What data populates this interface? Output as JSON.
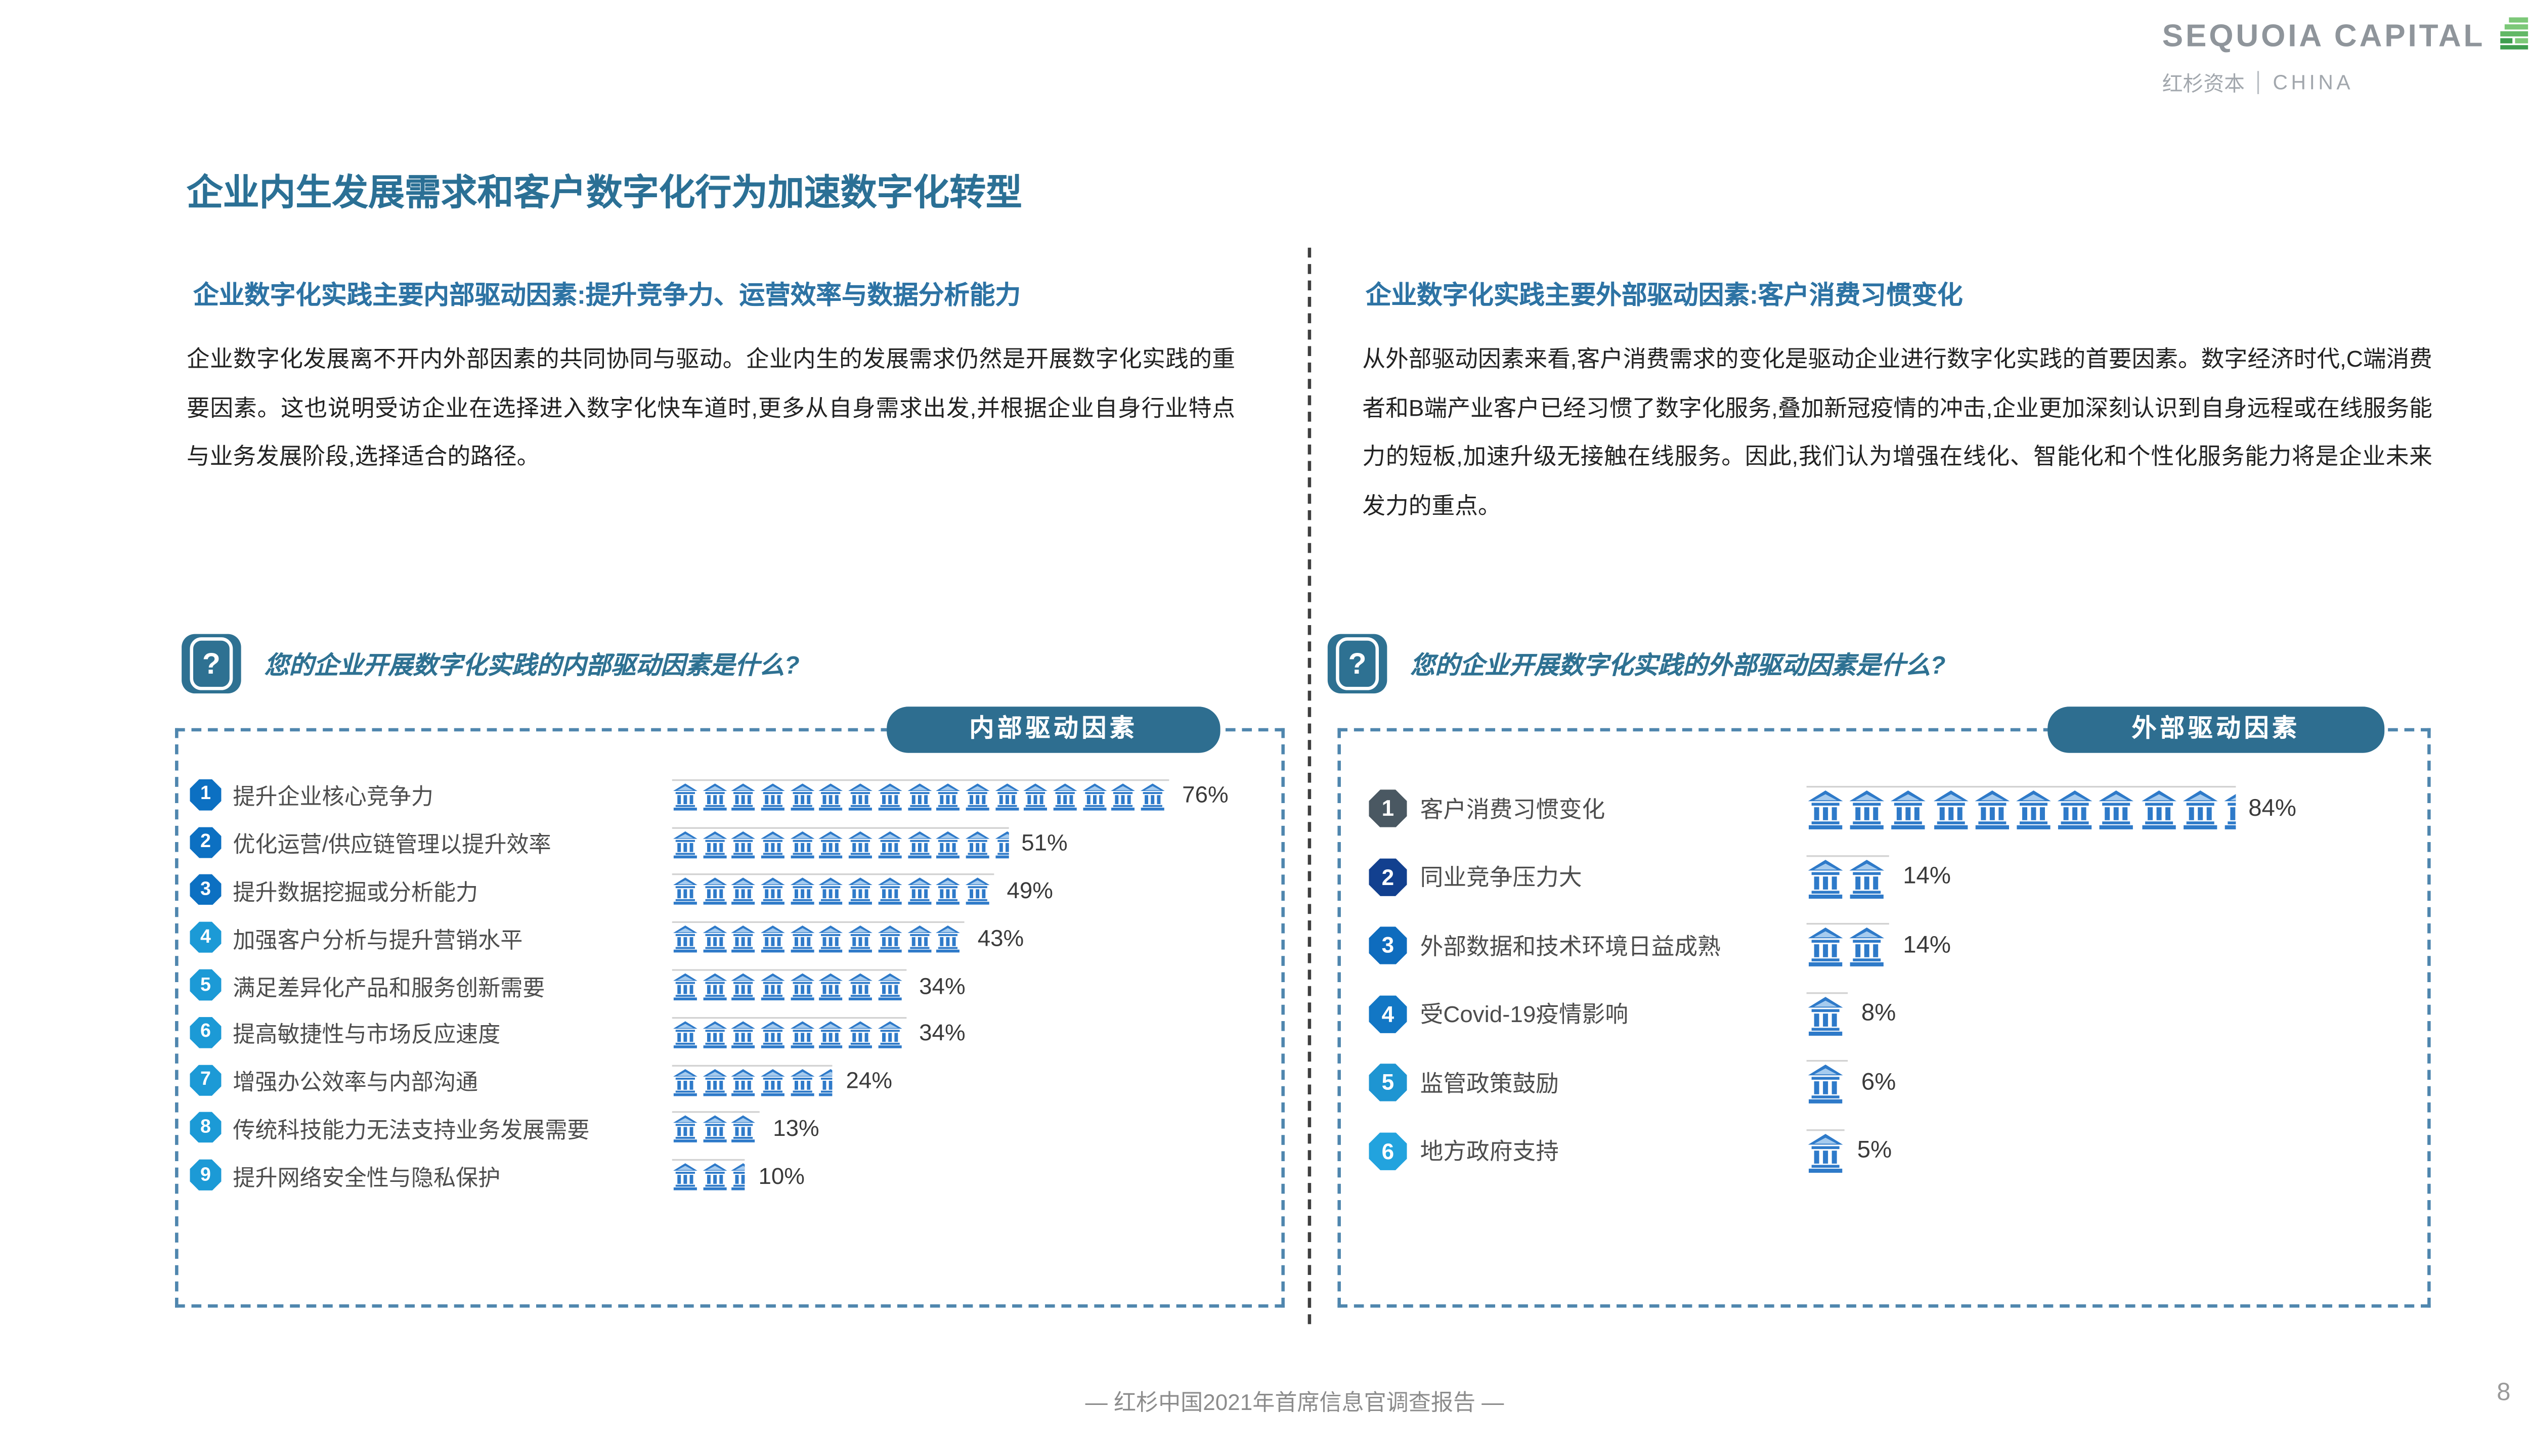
{
  "header": {
    "title": "企业内生发展需求和客户数字化行为加速数字化转型",
    "logo": {
      "brand": "SEQUOIA CAPITAL",
      "sub_cn": "红杉资本",
      "sub_en": "CHINA",
      "green_light": "#7cc878",
      "green_dark": "#3f9e4f"
    }
  },
  "panels": {
    "left": {
      "heading": "企业数字化实践主要内部驱动因素:提升竞争力、运营效率与数据分析能力",
      "paragraph": "企业数字化发展离不开内外部因素的共同协同与驱动。企业内生的发展需求仍然是开展数字化实践的重要因素。这也说明受访企业在选择进入数字化快车道时,更多从自身需求出发,并根据企业自身行业特点与业务发展阶段,选择适合的路径。",
      "question": "您的企业开展数字化实践的内部驱动因素是什么?",
      "q_icon_glyph": "?",
      "badge": "内部驱动因素",
      "items": [
        {
          "rank": "1",
          "label": "提升企业核心竞争力",
          "value": 76,
          "pct_label": "76%",
          "icons": 17,
          "marker_color": "#0c70c2"
        },
        {
          "rank": "2",
          "label": "优化运营/供应链管理以提升效率",
          "value": 51,
          "pct_label": "51%",
          "icons": 11.5,
          "marker_color": "#0c70c2"
        },
        {
          "rank": "3",
          "label": "提升数据挖掘或分析能力",
          "value": 49,
          "pct_label": "49%",
          "icons": 11,
          "marker_color": "#0c70c2"
        },
        {
          "rank": "4",
          "label": "加强客户分析与提升营销水平",
          "value": 43,
          "pct_label": "43%",
          "icons": 10,
          "marker_color": "#1c9ad6"
        },
        {
          "rank": "5",
          "label": "满足差异化产品和服务创新需要",
          "value": 34,
          "pct_label": "34%",
          "icons": 8,
          "marker_color": "#1c9ad6"
        },
        {
          "rank": "6",
          "label": "提高敏捷性与市场反应速度",
          "value": 34,
          "pct_label": "34%",
          "icons": 8,
          "marker_color": "#1c9ad6"
        },
        {
          "rank": "7",
          "label": "增强办公效率与内部沟通",
          "value": 24,
          "pct_label": "24%",
          "icons": 5.5,
          "marker_color": "#1c9ad6"
        },
        {
          "rank": "8",
          "label": "传统科技能力无法支持业务发展需要",
          "value": 13,
          "pct_label": "13%",
          "icons": 3,
          "marker_color": "#1c9ad6"
        },
        {
          "rank": "9",
          "label": "提升网络安全性与隐私保护",
          "value": 10,
          "pct_label": "10%",
          "icons": 2.5,
          "marker_color": "#1c9ad6"
        }
      ]
    },
    "right": {
      "heading": "企业数字化实践主要外部驱动因素:客户消费习惯变化",
      "paragraph": "从外部驱动因素来看,客户消费需求的变化是驱动企业进行数字化实践的首要因素。数字经济时代,C端消费者和B端产业客户已经习惯了数字化服务,叠加新冠疫情的冲击,企业更加深刻认识到自身远程或在线服务能力的短板,加速升级无接触在线服务。因此,我们认为增强在线化、智能化和个性化服务能力将是企业未来发力的重点。",
      "question": "您的企业开展数字化实践的外部驱动因素是什么?",
      "q_icon_glyph": "?",
      "badge": "外部驱动因素",
      "items": [
        {
          "rank": "1",
          "label": "客户消费习惯变化",
          "value": 84,
          "pct_label": "84%",
          "icons": 10.3,
          "marker_color": "#4a5862"
        },
        {
          "rank": "2",
          "label": "同业竞争压力大",
          "value": 14,
          "pct_label": "14%",
          "icons": 2,
          "marker_color": "#12408f"
        },
        {
          "rank": "3",
          "label": "外部数据和技术环境日益成熟",
          "value": 14,
          "pct_label": "14%",
          "icons": 2,
          "marker_color": "#0e6cbe"
        },
        {
          "rank": "4",
          "label": "受Covid-19疫情影响",
          "value": 8,
          "pct_label": "8%",
          "icons": 1,
          "marker_color": "#1277c5"
        },
        {
          "rank": "5",
          "label": "监管政策鼓励",
          "value": 6,
          "pct_label": "6%",
          "icons": 1,
          "marker_color": "#1e95d2"
        },
        {
          "rank": "6",
          "label": "地方政府支持",
          "value": 5,
          "pct_label": "5%",
          "icons": 0.9,
          "marker_color": "#22a3de"
        }
      ]
    }
  },
  "footer": {
    "caption": "— 红杉中国2021年首席信息官调查报告 —",
    "page": "8"
  },
  "colors": {
    "title_teal": "#2b7095",
    "heading_blue": "#2d73a4",
    "badge_teal": "#2e6e90",
    "panel_border": "#4f86ae",
    "bank_icon_blue": "#2e7ac9"
  },
  "chart_data": [
    {
      "type": "bar",
      "style": "pictograph-bank-icons",
      "title": "内部驱动因素",
      "question": "您的企业开展数字化实践的内部驱动因素是什么?",
      "categories": [
        "提升企业核心竞争力",
        "优化运营/供应链管理以提升效率",
        "提升数据挖掘或分析能力",
        "加强客户分析与提升营销水平",
        "满足差异化产品和服务创新需要",
        "提高敏捷性与市场反应速度",
        "增强办公效率与内部沟通",
        "传统科技能力无法支持业务发展需要",
        "提升网络安全性与隐私保护"
      ],
      "values": [
        76,
        51,
        49,
        43,
        34,
        34,
        24,
        13,
        10
      ],
      "unit": "%",
      "xlim": [
        0,
        100
      ],
      "orientation": "horizontal",
      "legend": "none"
    },
    {
      "type": "bar",
      "style": "pictograph-bank-icons",
      "title": "外部驱动因素",
      "question": "您的企业开展数字化实践的外部驱动因素是什么?",
      "categories": [
        "客户消费习惯变化",
        "同业竞争压力大",
        "外部数据和技术环境日益成熟",
        "受Covid-19疫情影响",
        "监管政策鼓励",
        "地方政府支持"
      ],
      "values": [
        84,
        14,
        14,
        8,
        6,
        5
      ],
      "unit": "%",
      "xlim": [
        0,
        100
      ],
      "orientation": "horizontal",
      "legend": "none"
    }
  ]
}
